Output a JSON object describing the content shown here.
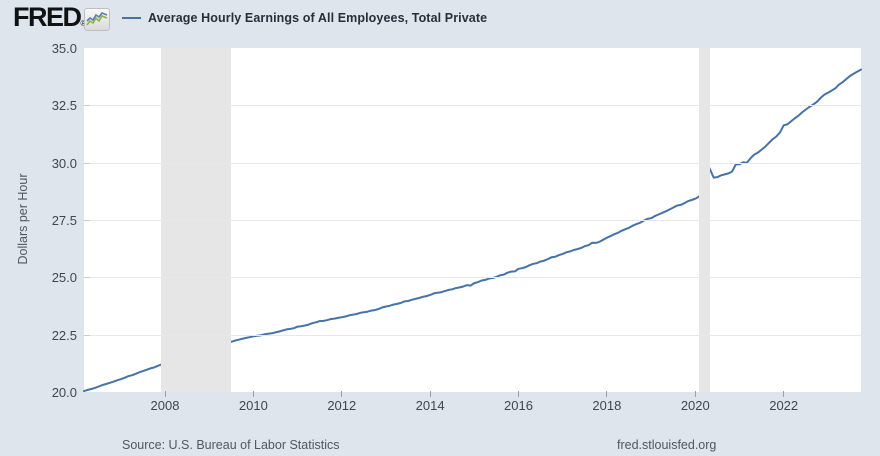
{
  "header": {
    "logo_text": "FRED",
    "logo_reg_mark": "®",
    "legend": {
      "label": "Average Hourly Earnings of All Employees, Total Private"
    }
  },
  "footer": {
    "source": "Source: U.S. Bureau of Labor Statistics",
    "site": "fred.stlouisfed.org"
  },
  "colors": {
    "background": "#dfe5ec",
    "plot_background": "#ffffff",
    "line": "#4572a7",
    "recession_band": "#e6e6e6",
    "gridline": "#e8e8e8",
    "tick_text": "#3d4751",
    "footer_text": "#50575e",
    "logo_icon_green": "#8cb04e",
    "logo_icon_blue": "#5b7fa6"
  },
  "chart_data": {
    "type": "line",
    "title": "Average Hourly Earnings of All Employees, Total Private",
    "xlabel": "",
    "ylabel": "Dollars per Hour",
    "ylim": [
      20.0,
      35.0
    ],
    "yticks": [
      20.0,
      22.5,
      25.0,
      27.5,
      30.0,
      32.5,
      35.0
    ],
    "xticks": [
      2008,
      2010,
      2012,
      2014,
      2016,
      2018,
      2020,
      2022
    ],
    "xlim_decimal_years": [
      2006.167,
      2023.75
    ],
    "grid": "horizontal",
    "legend_position": "top-left",
    "recession_bands": [
      [
        "2007-12",
        "2009-06"
      ],
      [
        "2020-02",
        "2020-04"
      ]
    ],
    "series": [
      {
        "name": "Average Hourly Earnings of All Employees, Total Private",
        "color": "#4572a7",
        "points": [
          [
            "2006-03",
            20.04
          ],
          [
            "2006-04",
            20.09
          ],
          [
            "2006-05",
            20.13
          ],
          [
            "2006-06",
            20.18
          ],
          [
            "2006-07",
            20.24
          ],
          [
            "2006-08",
            20.3
          ],
          [
            "2006-09",
            20.35
          ],
          [
            "2006-10",
            20.4
          ],
          [
            "2006-11",
            20.45
          ],
          [
            "2006-12",
            20.51
          ],
          [
            "2007-01",
            20.56
          ],
          [
            "2007-02",
            20.62
          ],
          [
            "2007-03",
            20.69
          ],
          [
            "2007-04",
            20.73
          ],
          [
            "2007-05",
            20.79
          ],
          [
            "2007-06",
            20.86
          ],
          [
            "2007-07",
            20.91
          ],
          [
            "2007-08",
            20.97
          ],
          [
            "2007-09",
            21.03
          ],
          [
            "2007-10",
            21.07
          ],
          [
            "2007-11",
            21.14
          ],
          [
            "2007-12",
            21.2
          ],
          [
            "2008-01",
            21.26
          ],
          [
            "2008-02",
            21.32
          ],
          [
            "2008-03",
            21.39
          ],
          [
            "2008-04",
            21.44
          ],
          [
            "2008-05",
            21.51
          ],
          [
            "2008-06",
            21.57
          ],
          [
            "2008-07",
            21.64
          ],
          [
            "2008-08",
            21.72
          ],
          [
            "2008-09",
            21.77
          ],
          [
            "2008-10",
            21.83
          ],
          [
            "2008-11",
            21.9
          ],
          [
            "2008-12",
            21.95
          ],
          [
            "2009-01",
            22.0
          ],
          [
            "2009-02",
            22.04
          ],
          [
            "2009-03",
            22.08
          ],
          [
            "2009-04",
            22.11
          ],
          [
            "2009-05",
            22.14
          ],
          [
            "2009-06",
            22.16
          ],
          [
            "2009-07",
            22.19
          ],
          [
            "2009-08",
            22.24
          ],
          [
            "2009-09",
            22.28
          ],
          [
            "2009-10",
            22.32
          ],
          [
            "2009-11",
            22.36
          ],
          [
            "2009-12",
            22.39
          ],
          [
            "2010-01",
            22.43
          ],
          [
            "2010-02",
            22.45
          ],
          [
            "2010-03",
            22.47
          ],
          [
            "2010-04",
            22.51
          ],
          [
            "2010-05",
            22.54
          ],
          [
            "2010-06",
            22.56
          ],
          [
            "2010-07",
            22.6
          ],
          [
            "2010-08",
            22.64
          ],
          [
            "2010-09",
            22.68
          ],
          [
            "2010-10",
            22.73
          ],
          [
            "2010-11",
            22.75
          ],
          [
            "2010-12",
            22.78
          ],
          [
            "2011-01",
            22.85
          ],
          [
            "2011-02",
            22.87
          ],
          [
            "2011-03",
            22.9
          ],
          [
            "2011-04",
            22.94
          ],
          [
            "2011-05",
            23.0
          ],
          [
            "2011-06",
            23.04
          ],
          [
            "2011-07",
            23.09
          ],
          [
            "2011-08",
            23.1
          ],
          [
            "2011-09",
            23.13
          ],
          [
            "2011-10",
            23.18
          ],
          [
            "2011-11",
            23.2
          ],
          [
            "2011-12",
            23.23
          ],
          [
            "2012-01",
            23.26
          ],
          [
            "2012-02",
            23.29
          ],
          [
            "2012-03",
            23.34
          ],
          [
            "2012-04",
            23.37
          ],
          [
            "2012-05",
            23.4
          ],
          [
            "2012-06",
            23.45
          ],
          [
            "2012-07",
            23.48
          ],
          [
            "2012-08",
            23.5
          ],
          [
            "2012-09",
            23.55
          ],
          [
            "2012-10",
            23.57
          ],
          [
            "2012-11",
            23.62
          ],
          [
            "2012-12",
            23.69
          ],
          [
            "2013-01",
            23.73
          ],
          [
            "2013-02",
            23.76
          ],
          [
            "2013-03",
            23.81
          ],
          [
            "2013-04",
            23.84
          ],
          [
            "2013-05",
            23.88
          ],
          [
            "2013-06",
            23.95
          ],
          [
            "2013-07",
            23.97
          ],
          [
            "2013-08",
            24.02
          ],
          [
            "2013-09",
            24.06
          ],
          [
            "2013-10",
            24.1
          ],
          [
            "2013-11",
            24.15
          ],
          [
            "2013-12",
            24.18
          ],
          [
            "2014-01",
            24.23
          ],
          [
            "2014-02",
            24.3
          ],
          [
            "2014-03",
            24.33
          ],
          [
            "2014-04",
            24.35
          ],
          [
            "2014-05",
            24.4
          ],
          [
            "2014-06",
            24.45
          ],
          [
            "2014-07",
            24.48
          ],
          [
            "2014-08",
            24.53
          ],
          [
            "2014-09",
            24.56
          ],
          [
            "2014-10",
            24.6
          ],
          [
            "2014-11",
            24.66
          ],
          [
            "2014-12",
            24.64
          ],
          [
            "2015-01",
            24.75
          ],
          [
            "2015-02",
            24.79
          ],
          [
            "2015-03",
            24.86
          ],
          [
            "2015-04",
            24.89
          ],
          [
            "2015-05",
            24.95
          ],
          [
            "2015-06",
            24.97
          ],
          [
            "2015-07",
            25.02
          ],
          [
            "2015-08",
            25.09
          ],
          [
            "2015-09",
            25.12
          ],
          [
            "2015-10",
            25.2
          ],
          [
            "2015-11",
            25.25
          ],
          [
            "2015-12",
            25.26
          ],
          [
            "2016-01",
            25.37
          ],
          [
            "2016-02",
            25.4
          ],
          [
            "2016-03",
            25.45
          ],
          [
            "2016-04",
            25.53
          ],
          [
            "2016-05",
            25.59
          ],
          [
            "2016-06",
            25.62
          ],
          [
            "2016-07",
            25.69
          ],
          [
            "2016-08",
            25.73
          ],
          [
            "2016-09",
            25.8
          ],
          [
            "2016-10",
            25.88
          ],
          [
            "2016-11",
            25.9
          ],
          [
            "2016-12",
            25.97
          ],
          [
            "2017-01",
            26.02
          ],
          [
            "2017-02",
            26.09
          ],
          [
            "2017-03",
            26.13
          ],
          [
            "2017-04",
            26.19
          ],
          [
            "2017-05",
            26.23
          ],
          [
            "2017-06",
            26.28
          ],
          [
            "2017-07",
            26.36
          ],
          [
            "2017-08",
            26.4
          ],
          [
            "2017-09",
            26.51
          ],
          [
            "2017-10",
            26.5
          ],
          [
            "2017-11",
            26.55
          ],
          [
            "2017-12",
            26.64
          ],
          [
            "2018-01",
            26.73
          ],
          [
            "2018-02",
            26.8
          ],
          [
            "2018-03",
            26.88
          ],
          [
            "2018-04",
            26.94
          ],
          [
            "2018-05",
            27.03
          ],
          [
            "2018-06",
            27.1
          ],
          [
            "2018-07",
            27.16
          ],
          [
            "2018-08",
            27.25
          ],
          [
            "2018-09",
            27.32
          ],
          [
            "2018-10",
            27.38
          ],
          [
            "2018-11",
            27.47
          ],
          [
            "2018-12",
            27.55
          ],
          [
            "2019-01",
            27.58
          ],
          [
            "2019-02",
            27.67
          ],
          [
            "2019-03",
            27.74
          ],
          [
            "2019-04",
            27.81
          ],
          [
            "2019-05",
            27.88
          ],
          [
            "2019-06",
            27.96
          ],
          [
            "2019-07",
            28.04
          ],
          [
            "2019-08",
            28.13
          ],
          [
            "2019-09",
            28.16
          ],
          [
            "2019-10",
            28.23
          ],
          [
            "2019-11",
            28.32
          ],
          [
            "2019-12",
            28.37
          ],
          [
            "2020-01",
            28.43
          ],
          [
            "2020-02",
            28.52
          ],
          [
            "2020-03",
            28.69
          ],
          [
            "2020-04",
            30.04
          ],
          [
            "2020-05",
            29.71
          ],
          [
            "2020-06",
            29.35
          ],
          [
            "2020-07",
            29.37
          ],
          [
            "2020-08",
            29.45
          ],
          [
            "2020-09",
            29.49
          ],
          [
            "2020-10",
            29.53
          ],
          [
            "2020-11",
            29.61
          ],
          [
            "2020-12",
            29.92
          ],
          [
            "2021-01",
            29.93
          ],
          [
            "2021-02",
            30.02
          ],
          [
            "2021-03",
            29.99
          ],
          [
            "2021-04",
            30.19
          ],
          [
            "2021-05",
            30.35
          ],
          [
            "2021-06",
            30.44
          ],
          [
            "2021-07",
            30.57
          ],
          [
            "2021-08",
            30.7
          ],
          [
            "2021-09",
            30.86
          ],
          [
            "2021-10",
            31.02
          ],
          [
            "2021-11",
            31.14
          ],
          [
            "2021-12",
            31.32
          ],
          [
            "2022-01",
            31.63
          ],
          [
            "2022-02",
            31.67
          ],
          [
            "2022-03",
            31.8
          ],
          [
            "2022-04",
            31.93
          ],
          [
            "2022-05",
            32.05
          ],
          [
            "2022-06",
            32.19
          ],
          [
            "2022-07",
            32.32
          ],
          [
            "2022-08",
            32.43
          ],
          [
            "2022-09",
            32.53
          ],
          [
            "2022-10",
            32.65
          ],
          [
            "2022-11",
            32.82
          ],
          [
            "2022-12",
            32.96
          ],
          [
            "2023-01",
            33.05
          ],
          [
            "2023-02",
            33.14
          ],
          [
            "2023-03",
            33.24
          ],
          [
            "2023-04",
            33.4
          ],
          [
            "2023-05",
            33.51
          ],
          [
            "2023-06",
            33.65
          ],
          [
            "2023-07",
            33.78
          ],
          [
            "2023-08",
            33.88
          ],
          [
            "2023-09",
            33.97
          ],
          [
            "2023-10",
            34.06
          ]
        ]
      }
    ]
  }
}
